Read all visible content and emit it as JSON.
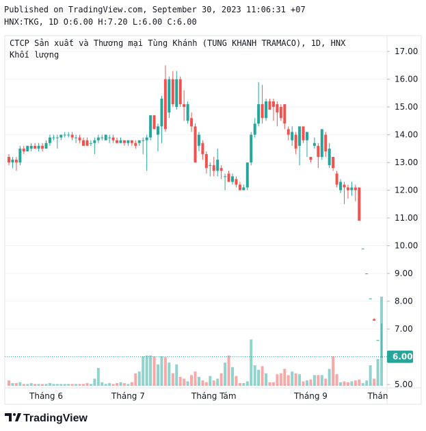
{
  "header": {
    "published": "Published on TradingView.com, September 30, 2023 11:06:31 +07",
    "ohlc": "HNX:TKG, 1D O:6.00 H:7.20 L:6.00 C:6.00"
  },
  "chart_data": {
    "type": "candlestick",
    "title": "CTCP Sản xuất và Thương mại Tùng Khánh (TUNG KHANH TRAMACO), 1D, HNX",
    "volume_label": "Khối lượng",
    "categories": [
      null,
      null,
      null,
      null,
      null,
      null,
      null,
      null,
      null,
      null,
      "Tháng 6",
      null,
      null,
      null,
      null,
      null,
      null,
      null,
      null,
      null,
      null,
      null,
      null,
      null,
      null,
      null,
      null,
      null,
      null,
      null,
      null,
      null,
      "Tháng 7",
      null,
      null,
      null,
      null,
      null,
      null,
      null,
      null,
      null,
      null,
      null,
      null,
      null,
      null,
      null,
      null,
      null,
      null,
      null,
      null,
      null,
      null,
      "Tháng Tám",
      null,
      null,
      null,
      null,
      null,
      null,
      null,
      null,
      null,
      null,
      null,
      null,
      null,
      null,
      null,
      null,
      null,
      null,
      null,
      null,
      null,
      null,
      null,
      null,
      null,
      "Tháng 9",
      null,
      null,
      null,
      null,
      null,
      null,
      null,
      null,
      null,
      null,
      null,
      null,
      null,
      null,
      null,
      null,
      null,
      "Thán",
      null
    ],
    "open": [
      13.2,
      13.0,
      13.1,
      13.0,
      13.5,
      13.4,
      13.5,
      13.6,
      13.5,
      13.6,
      13.5,
      13.7,
      13.9,
      13.9,
      13.9,
      14.0,
      14.0,
      14.0,
      13.9,
      13.9,
      13.8,
      13.8,
      13.7,
      13.7,
      13.8,
      13.9,
      13.8,
      13.9,
      13.9,
      13.8,
      13.7,
      13.8,
      13.7,
      13.8,
      13.7,
      13.7,
      13.8,
      13.8,
      13.9,
      14.7,
      14.0,
      14.3,
      16.0,
      14.8,
      16.0,
      15.0,
      16.0,
      15.1,
      14.5,
      14.6,
      14.3,
      13.6,
      13.7,
      13.3,
      12.9,
      12.9,
      12.7,
      12.8,
      12.5,
      12.6,
      12.3,
      12.4,
      12.2,
      12.0,
      12.1,
      13.0,
      14.0,
      14.4,
      15.1,
      14.6,
      15.2,
      15.2,
      15.1,
      15.0,
      15.1,
      14.2,
      13.8,
      14.0,
      13.6,
      14.3,
      13.8,
      13.2,
      13.6,
      13.6,
      13.2,
      14.0,
      12.9,
      13.2,
      12.6,
      12.0,
      12.2,
      12.1,
      12.0,
      12.1,
      12.1,
      9.9,
      9.0,
      8.1,
      7.35,
      6.6,
      6.0
    ],
    "high": [
      13.3,
      13.2,
      13.2,
      13.6,
      13.6,
      13.6,
      13.7,
      13.7,
      13.7,
      13.7,
      13.8,
      14.0,
      14.0,
      14.0,
      14.0,
      14.1,
      14.1,
      14.1,
      14.0,
      14.0,
      13.9,
      13.9,
      13.8,
      13.9,
      14.0,
      14.0,
      14.0,
      14.0,
      14.0,
      13.9,
      13.9,
      13.8,
      13.8,
      13.8,
      13.8,
      13.8,
      13.9,
      14.0,
      14.7,
      14.7,
      14.4,
      15.4,
      16.5,
      16.1,
      16.3,
      16.3,
      16.1,
      15.6,
      15.2,
      14.8,
      14.4,
      14.1,
      13.8,
      13.4,
      13.0,
      13.2,
      13.5,
      12.9,
      12.6,
      12.7,
      12.6,
      12.5,
      12.3,
      12.2,
      13.0,
      14.1,
      14.6,
      15.9,
      15.8,
      15.3,
      15.3,
      15.3,
      15.2,
      15.1,
      15.1,
      14.3,
      14.3,
      14.1,
      14.3,
      14.3,
      14.1,
      13.2,
      13.9,
      13.7,
      14.2,
      14.1,
      13.7,
      13.2,
      12.7,
      12.4,
      12.3,
      12.2,
      12.3,
      12.2,
      12.1,
      9.9,
      9.0,
      8.1,
      7.4,
      6.6,
      7.2
    ],
    "low": [
      12.9,
      12.8,
      12.7,
      12.9,
      13.3,
      13.4,
      13.4,
      13.5,
      13.4,
      13.4,
      13.5,
      13.6,
      13.8,
      13.5,
      13.8,
      13.9,
      13.9,
      13.8,
      13.7,
      13.7,
      13.6,
      13.6,
      13.6,
      13.3,
      13.7,
      13.8,
      13.8,
      13.7,
      13.7,
      13.7,
      13.7,
      13.6,
      13.6,
      13.6,
      13.5,
      13.6,
      13.3,
      12.7,
      13.8,
      14.2,
      13.4,
      13.7,
      14.1,
      14.6,
      15.0,
      14.9,
      15.0,
      14.5,
      14.4,
      14.1,
      13.0,
      13.4,
      13.1,
      12.6,
      12.5,
      12.5,
      12.5,
      12.4,
      12.0,
      12.3,
      12.2,
      12.1,
      12.0,
      12.0,
      12.0,
      12.9,
      13.9,
      14.3,
      14.4,
      14.5,
      14.9,
      14.5,
      14.3,
      14.5,
      14.2,
      13.8,
      13.6,
      13.3,
      12.9,
      13.7,
      13.2,
      13.0,
      13.5,
      12.8,
      13.1,
      13.2,
      12.8,
      12.7,
      12.1,
      11.9,
      11.5,
      11.7,
      11.8,
      11.6,
      10.9,
      9.9,
      9.0,
      8.1,
      7.3,
      6.6,
      6.0
    ],
    "close": [
      13.0,
      13.1,
      13.0,
      13.5,
      13.4,
      13.6,
      13.6,
      13.5,
      13.6,
      13.5,
      13.7,
      13.9,
      13.9,
      13.9,
      14.0,
      14.0,
      14.0,
      13.9,
      13.9,
      13.8,
      13.6,
      13.6,
      13.7,
      13.8,
      13.9,
      13.9,
      14.0,
      13.9,
      13.8,
      13.7,
      13.8,
      13.7,
      13.8,
      13.7,
      13.6,
      13.8,
      13.8,
      13.9,
      14.7,
      14.2,
      14.3,
      15.3,
      14.2,
      16.0,
      15.1,
      16.0,
      15.1,
      15.0,
      15.1,
      14.3,
      13.0,
      14.0,
      13.3,
      12.8,
      12.9,
      12.7,
      13.1,
      12.7,
      12.5,
      12.3,
      12.5,
      12.2,
      12.0,
      12.1,
      13.0,
      14.0,
      14.4,
      15.1,
      14.6,
      15.2,
      14.9,
      15.0,
      14.8,
      14.6,
      14.4,
      14.0,
      14.1,
      13.5,
      14.3,
      13.8,
      14.1,
      13.1,
      13.7,
      13.2,
      14.2,
      13.4,
      13.5,
      12.8,
      12.2,
      12.3,
      12.1,
      12.0,
      12.1,
      12.0,
      10.9,
      9.9,
      9.0,
      8.1,
      7.3,
      6.6,
      6.0
    ],
    "volume": [
      6,
      3,
      3,
      4,
      2,
      2,
      3,
      2,
      2,
      2,
      2,
      3,
      2,
      2,
      2,
      2,
      2,
      2,
      2,
      2,
      2,
      3,
      2,
      8,
      20,
      4,
      2,
      3,
      2,
      3,
      4,
      3,
      2,
      4,
      14,
      16,
      33,
      34,
      34,
      33,
      24,
      33,
      32,
      26,
      14,
      24,
      10,
      8,
      5,
      12,
      16,
      10,
      6,
      4,
      11,
      6,
      8,
      14,
      26,
      34,
      21,
      11,
      3,
      3,
      5,
      52,
      23,
      18,
      22,
      14,
      4,
      4,
      13,
      14,
      19,
      12,
      16,
      14,
      13,
      5,
      6,
      7,
      12,
      12,
      12,
      8,
      19,
      33,
      13,
      4,
      5,
      4,
      5,
      6,
      7,
      3,
      6,
      23,
      8,
      30,
      100
    ],
    "volume_ylim": [
      0,
      100
    ],
    "up_color": "#26a69a",
    "down_color": "#ef5350",
    "ylim": [
      4.88,
      17.57
    ],
    "yticks": [
      {
        "value": 5,
        "label": "5.00"
      },
      {
        "value": 6,
        "label": "6.00"
      },
      {
        "value": 7,
        "label": "7.00"
      },
      {
        "value": 8,
        "label": "8.00"
      },
      {
        "value": 9,
        "label": "9.00"
      },
      {
        "value": 10,
        "label": "10.00"
      },
      {
        "value": 11,
        "label": "11.00"
      },
      {
        "value": 12,
        "label": "12.00"
      },
      {
        "value": 13,
        "label": "13.00"
      },
      {
        "value": 14,
        "label": "14.00"
      },
      {
        "value": 15,
        "label": "15.00"
      },
      {
        "value": 16,
        "label": "16.00"
      },
      {
        "value": 17,
        "label": "17.00"
      }
    ],
    "last_price": {
      "value": 6,
      "label": "6.00"
    },
    "grid": true
  },
  "footer": {
    "brand": "TradingView"
  }
}
